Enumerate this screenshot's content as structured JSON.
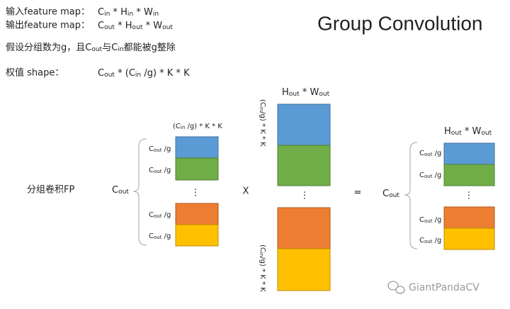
{
  "header": {
    "input_label": "输入feature map：",
    "input_shape": [
      {
        "text": "C"
      },
      {
        "text": "in",
        "sub": true
      },
      {
        "text": " * H"
      },
      {
        "text": "in",
        "sub": true
      },
      {
        "text": " * W"
      },
      {
        "text": "in",
        "sub": true
      }
    ],
    "output_label": "输出feature map：",
    "output_shape": [
      {
        "text": "C"
      },
      {
        "text": "out",
        "sub": true
      },
      {
        "text": " * H"
      },
      {
        "text": "out",
        "sub": true
      },
      {
        "text": " * W"
      },
      {
        "text": "out",
        "sub": true
      }
    ],
    "assumption": [
      {
        "text": "假设分组数为g，且C"
      },
      {
        "text": "out",
        "sub": true
      },
      {
        "text": "与C"
      },
      {
        "text": "in",
        "sub": true
      },
      {
        "text": "都能被g整除"
      }
    ],
    "weight_label": "权值 shape：",
    "weight_shape": [
      {
        "text": "C"
      },
      {
        "text": "out",
        "sub": true
      },
      {
        "text": " * (C"
      },
      {
        "text": "in",
        "sub": true
      },
      {
        "text": " /g) * K * K"
      }
    ],
    "title": "Group Convolution"
  },
  "diagram": {
    "row_label": "分组卷积FP",
    "weight": {
      "top_label": [
        {
          "text": "(C"
        },
        {
          "text": "in",
          "sub": true
        },
        {
          "text": " /g) * K * K"
        }
      ],
      "side_label": [
        {
          "text": "C"
        },
        {
          "text": "out",
          "sub": true
        }
      ],
      "group_labels": [
        [
          {
            "text": "C"
          },
          {
            "text": "out",
            "sub": true
          },
          {
            "text": " /g"
          }
        ],
        [
          {
            "text": "C"
          },
          {
            "text": "out",
            "sub": true
          },
          {
            "text": " /g"
          }
        ],
        [
          {
            "text": "C"
          },
          {
            "text": "out",
            "sub": true
          },
          {
            "text": " /g"
          }
        ],
        [
          {
            "text": "C"
          },
          {
            "text": "out",
            "sub": true
          },
          {
            "text": " /g"
          }
        ]
      ],
      "ellipsis": "⋮"
    },
    "times": "X",
    "input": {
      "top_label": [
        {
          "text": "H"
        },
        {
          "text": "out",
          "sub": true
        },
        {
          "text": " * W"
        },
        {
          "text": "out",
          "sub": true
        }
      ],
      "side_label_top": [
        {
          "text": "(C"
        },
        {
          "text": "in",
          "sub": true
        },
        {
          "text": "/g) * K * K"
        }
      ],
      "side_label_bottom": [
        {
          "text": "(C"
        },
        {
          "text": "in",
          "sub": true
        },
        {
          "text": "/g) * K * K"
        }
      ],
      "ellipsis": "⋮"
    },
    "equals": "=",
    "output": {
      "top_label": [
        {
          "text": "H"
        },
        {
          "text": "out",
          "sub": true
        },
        {
          "text": " * W"
        },
        {
          "text": "out",
          "sub": true
        }
      ],
      "side_label": [
        {
          "text": "C"
        },
        {
          "text": "out",
          "sub": true
        }
      ],
      "group_labels": [
        [
          {
            "text": "C"
          },
          {
            "text": "out",
            "sub": true
          },
          {
            "text": " /g"
          }
        ],
        [
          {
            "text": "C"
          },
          {
            "text": "out",
            "sub": true
          },
          {
            "text": " /g"
          }
        ],
        [
          {
            "text": "C"
          },
          {
            "text": "out",
            "sub": true
          },
          {
            "text": " /g"
          }
        ],
        [
          {
            "text": "C"
          },
          {
            "text": "out",
            "sub": true
          },
          {
            "text": " /g"
          }
        ]
      ],
      "ellipsis": "⋮"
    }
  },
  "watermark": "GiantPandaCV"
}
